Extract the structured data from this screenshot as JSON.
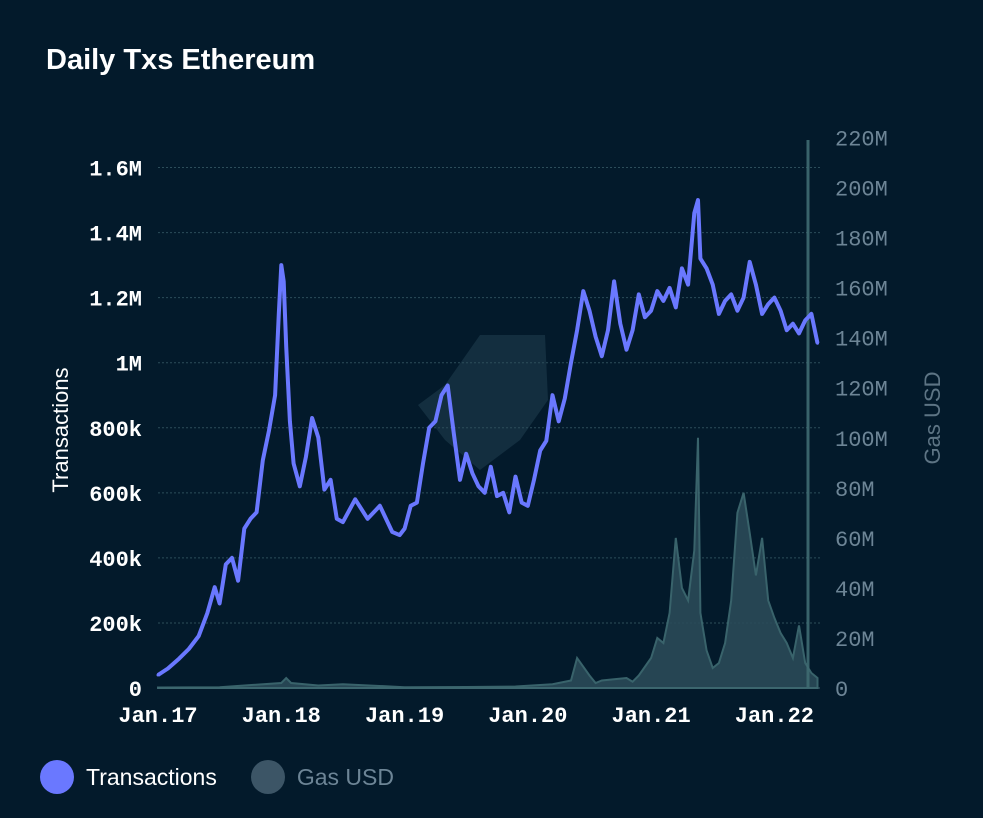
{
  "title": "Daily Txs Ethereum",
  "colors": {
    "background": "#031a2b",
    "transactions": "#6a78ff",
    "gas": "#2a4a58",
    "gas_stroke": "#3f6b72",
    "grid": "#2c4d5a",
    "logo": "#163343"
  },
  "legend": [
    {
      "label": "Transactions",
      "color": "#6a78ff",
      "text_color": "#ffffff"
    },
    {
      "label": "Gas USD",
      "color": "#3c5566",
      "text_color": "#6d8596"
    }
  ],
  "chart_data": {
    "type": "line",
    "title": "Daily Txs Ethereum",
    "ylabel": "Transactions",
    "y2label": "Gas USD",
    "ylim": [
      0,
      1700000
    ],
    "y2lim": [
      0,
      221000000
    ],
    "xlim": [
      2017.0,
      2022.37
    ],
    "grid": true,
    "legend_position": "bottom-left",
    "x_ticks": [
      {
        "value": 2017.0,
        "label": "Jan.17"
      },
      {
        "value": 2018.0,
        "label": "Jan.18"
      },
      {
        "value": 2019.0,
        "label": "Jan.19"
      },
      {
        "value": 2020.0,
        "label": "Jan.20"
      },
      {
        "value": 2021.0,
        "label": "Jan.21"
      },
      {
        "value": 2022.0,
        "label": "Jan.22"
      }
    ],
    "y_ticks": [
      {
        "value": 0,
        "label": "0"
      },
      {
        "value": 200000,
        "label": "200k"
      },
      {
        "value": 400000,
        "label": "400k"
      },
      {
        "value": 600000,
        "label": "600k"
      },
      {
        "value": 800000,
        "label": "800k"
      },
      {
        "value": 1000000,
        "label": "1M"
      },
      {
        "value": 1200000,
        "label": "1.2M"
      },
      {
        "value": 1400000,
        "label": "1.4M"
      },
      {
        "value": 1600000,
        "label": "1.6M"
      }
    ],
    "y2_ticks": [
      {
        "value": 0,
        "label": "0"
      },
      {
        "value": 20000000,
        "label": "20M"
      },
      {
        "value": 40000000,
        "label": "40M"
      },
      {
        "value": 60000000,
        "label": "60M"
      },
      {
        "value": 80000000,
        "label": "80M"
      },
      {
        "value": 100000000,
        "label": "100M"
      },
      {
        "value": 120000000,
        "label": "120M"
      },
      {
        "value": 140000000,
        "label": "140M"
      },
      {
        "value": 160000000,
        "label": "160M"
      },
      {
        "value": 180000000,
        "label": "180M"
      },
      {
        "value": 200000000,
        "label": "200M"
      },
      {
        "value": 220000000,
        "label": "220M"
      }
    ],
    "series": [
      {
        "name": "Transactions",
        "axis": "left",
        "x": [
          2017.0,
          2017.08,
          2017.17,
          2017.25,
          2017.33,
          2017.4,
          2017.46,
          2017.5,
          2017.55,
          2017.6,
          2017.65,
          2017.7,
          2017.75,
          2017.8,
          2017.85,
          2017.9,
          2017.95,
          2017.98,
          2018.0,
          2018.02,
          2018.04,
          2018.07,
          2018.1,
          2018.15,
          2018.2,
          2018.25,
          2018.3,
          2018.35,
          2018.4,
          2018.45,
          2018.5,
          2018.6,
          2018.7,
          2018.8,
          2018.9,
          2018.96,
          2019.0,
          2019.05,
          2019.1,
          2019.15,
          2019.2,
          2019.25,
          2019.3,
          2019.35,
          2019.4,
          2019.45,
          2019.5,
          2019.55,
          2019.6,
          2019.65,
          2019.7,
          2019.75,
          2019.8,
          2019.85,
          2019.9,
          2019.95,
          2020.0,
          2020.05,
          2020.1,
          2020.15,
          2020.2,
          2020.25,
          2020.3,
          2020.35,
          2020.4,
          2020.45,
          2020.5,
          2020.55,
          2020.6,
          2020.65,
          2020.7,
          2020.75,
          2020.8,
          2020.85,
          2020.9,
          2020.95,
          2021.0,
          2021.05,
          2021.1,
          2021.15,
          2021.2,
          2021.25,
          2021.3,
          2021.35,
          2021.38,
          2021.4,
          2021.45,
          2021.5,
          2021.55,
          2021.6,
          2021.65,
          2021.7,
          2021.75,
          2021.8,
          2021.85,
          2021.9,
          2021.95,
          2022.0,
          2022.05,
          2022.1,
          2022.15,
          2022.2,
          2022.25,
          2022.3,
          2022.35
        ],
        "values": [
          40000,
          60000,
          90000,
          120000,
          160000,
          230000,
          310000,
          260000,
          380000,
          400000,
          330000,
          490000,
          520000,
          540000,
          700000,
          790000,
          900000,
          1150000,
          1300000,
          1250000,
          1050000,
          820000,
          690000,
          620000,
          710000,
          830000,
          770000,
          610000,
          640000,
          520000,
          510000,
          580000,
          520000,
          560000,
          480000,
          470000,
          490000,
          560000,
          570000,
          690000,
          800000,
          820000,
          900000,
          930000,
          780000,
          640000,
          720000,
          660000,
          620000,
          600000,
          680000,
          590000,
          600000,
          540000,
          650000,
          570000,
          560000,
          640000,
          730000,
          760000,
          900000,
          820000,
          890000,
          1000000,
          1100000,
          1220000,
          1160000,
          1080000,
          1020000,
          1100000,
          1250000,
          1120000,
          1040000,
          1100000,
          1210000,
          1140000,
          1160000,
          1220000,
          1190000,
          1230000,
          1170000,
          1290000,
          1240000,
          1460000,
          1500000,
          1320000,
          1290000,
          1240000,
          1150000,
          1190000,
          1210000,
          1160000,
          1200000,
          1310000,
          1240000,
          1150000,
          1180000,
          1200000,
          1160000,
          1100000,
          1120000,
          1090000,
          1130000,
          1150000,
          1060000
        ]
      },
      {
        "name": "Gas USD",
        "axis": "right",
        "x": [
          2017.0,
          2017.5,
          2018.0,
          2018.04,
          2018.08,
          2018.3,
          2018.5,
          2019.0,
          2019.5,
          2019.9,
          2020.2,
          2020.35,
          2020.4,
          2020.5,
          2020.55,
          2020.6,
          2020.7,
          2020.8,
          2020.85,
          2020.9,
          2021.0,
          2021.05,
          2021.1,
          2021.15,
          2021.2,
          2021.25,
          2021.3,
          2021.35,
          2021.38,
          2021.4,
          2021.45,
          2021.5,
          2021.55,
          2021.6,
          2021.65,
          2021.7,
          2021.75,
          2021.8,
          2021.85,
          2021.9,
          2021.95,
          2022.0,
          2022.05,
          2022.1,
          2022.15,
          2022.2,
          2022.25,
          2022.3,
          2022.35
        ],
        "values": [
          200000,
          300000,
          2000000,
          4000000,
          2000000,
          1000000,
          1500000,
          300000,
          400000,
          600000,
          1500000,
          3000000,
          12000000,
          5000000,
          2000000,
          3000000,
          3500000,
          4000000,
          2500000,
          5000000,
          12000000,
          20000000,
          18000000,
          30000000,
          60000000,
          40000000,
          35000000,
          55000000,
          100000000,
          30000000,
          15000000,
          8000000,
          10000000,
          18000000,
          35000000,
          70000000,
          78000000,
          62000000,
          45000000,
          60000000,
          35000000,
          28000000,
          22000000,
          18000000,
          12000000,
          25000000,
          10000000,
          6000000,
          4000000
        ]
      }
    ]
  }
}
